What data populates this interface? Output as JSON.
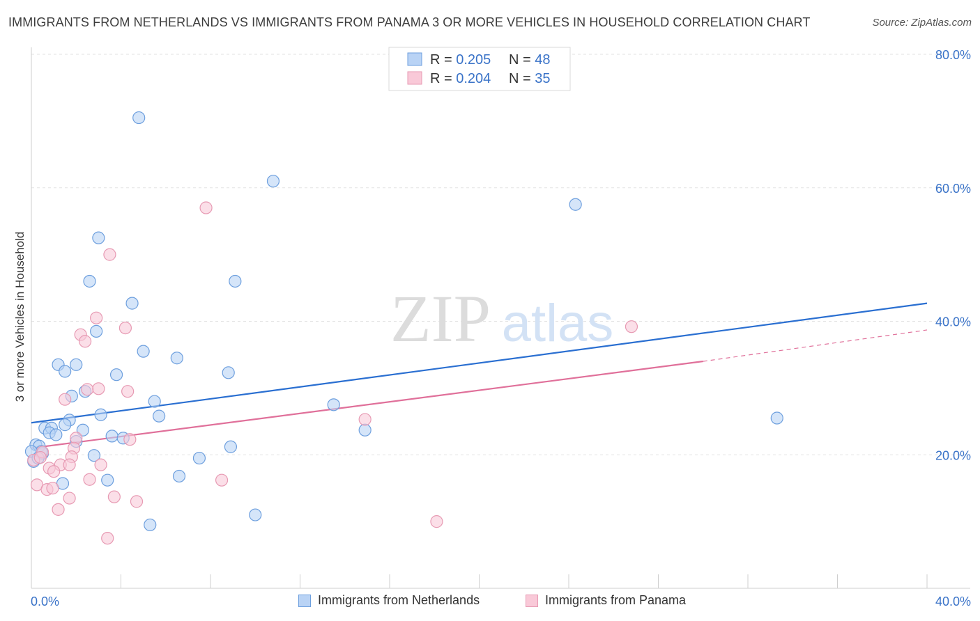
{
  "title": "IMMIGRANTS FROM NETHERLANDS VS IMMIGRANTS FROM PANAMA 3 OR MORE VEHICLES IN HOUSEHOLD CORRELATION CHART",
  "source": "Source: ZipAtlas.com",
  "watermark": {
    "zip": "ZIP",
    "atlas": "atlas"
  },
  "colors": {
    "netherlands_fill": "#b9d3f5",
    "netherlands_stroke": "#6d9fde",
    "netherlands_line": "#2a6fd1",
    "panama_fill": "#f9c9d8",
    "panama_stroke": "#e79ab3",
    "panama_line": "#e0709a",
    "value_text": "#3a73c8"
  },
  "legend": [
    {
      "r_label": "R = ",
      "r_value": "0.205",
      "n_label": "N = ",
      "n_value": "48"
    },
    {
      "r_label": "R = ",
      "r_value": "0.204",
      "n_label": "N = ",
      "n_value": "35"
    }
  ],
  "chart_data": {
    "type": "scatter",
    "title": "IMMIGRANTS FROM NETHERLANDS VS IMMIGRANTS FROM PANAMA 3 OR MORE VEHICLES IN HOUSEHOLD CORRELATION CHART",
    "xlabel": "",
    "ylabel": "3 or more Vehicles in Household",
    "xlim": [
      0,
      40
    ],
    "ylim": [
      0,
      80
    ],
    "x_tick_labels": [
      "0.0%",
      "40.0%"
    ],
    "y_ticks": [
      20,
      40,
      60,
      80
    ],
    "y_tick_labels": [
      "20.0%",
      "40.0%",
      "60.0%",
      "80.0%"
    ],
    "grid": true,
    "legend_position": "top-center",
    "series": [
      {
        "name": "Immigrants from Netherlands",
        "r": 0.205,
        "n": 48,
        "trend": {
          "x": [
            0,
            40
          ],
          "y": [
            24.8,
            42.7
          ]
        },
        "points": [
          [
            4.8,
            70.5
          ],
          [
            10.8,
            61.0
          ],
          [
            24.3,
            57.5
          ],
          [
            3.0,
            52.5
          ],
          [
            2.6,
            46.0
          ],
          [
            9.1,
            46.0
          ],
          [
            4.5,
            42.7
          ],
          [
            2.9,
            38.5
          ],
          [
            5.0,
            35.5
          ],
          [
            6.5,
            34.5
          ],
          [
            1.2,
            33.5
          ],
          [
            2.0,
            33.5
          ],
          [
            1.5,
            32.5
          ],
          [
            3.8,
            32.0
          ],
          [
            8.8,
            32.3
          ],
          [
            2.4,
            29.5
          ],
          [
            1.8,
            28.8
          ],
          [
            5.5,
            28.0
          ],
          [
            13.5,
            27.5
          ],
          [
            3.1,
            26.0
          ],
          [
            5.7,
            25.8
          ],
          [
            1.7,
            25.2
          ],
          [
            0.6,
            24.0
          ],
          [
            0.9,
            24.0
          ],
          [
            1.5,
            24.5
          ],
          [
            2.3,
            23.7
          ],
          [
            14.9,
            23.7
          ],
          [
            33.3,
            25.5
          ],
          [
            0.8,
            23.3
          ],
          [
            1.1,
            23.0
          ],
          [
            3.6,
            22.8
          ],
          [
            4.1,
            22.5
          ],
          [
            2.0,
            22.0
          ],
          [
            0.2,
            21.5
          ],
          [
            0.35,
            21.3
          ],
          [
            8.9,
            21.2
          ],
          [
            0.5,
            20.2
          ],
          [
            0.45,
            20.5
          ],
          [
            2.8,
            19.9
          ],
          [
            7.5,
            19.5
          ],
          [
            0.1,
            19.0
          ],
          [
            6.6,
            16.8
          ],
          [
            3.4,
            16.2
          ],
          [
            1.4,
            15.7
          ],
          [
            10.0,
            11.0
          ],
          [
            5.3,
            9.5
          ],
          [
            0.0,
            20.5
          ],
          [
            0.3,
            19.5
          ]
        ]
      },
      {
        "name": "Immigrants from Panama",
        "r": 0.204,
        "n": 35,
        "trend": {
          "x": [
            0,
            30
          ],
          "y": [
            21.0,
            34.0
          ]
        },
        "trend_dashed": {
          "x": [
            30,
            40
          ],
          "y": [
            34.0,
            38.7
          ]
        },
        "points": [
          [
            7.8,
            57.0
          ],
          [
            3.5,
            50.0
          ],
          [
            2.9,
            40.5
          ],
          [
            4.2,
            39.0
          ],
          [
            2.2,
            38.0
          ],
          [
            2.4,
            37.0
          ],
          [
            26.8,
            39.2
          ],
          [
            4.3,
            29.5
          ],
          [
            2.5,
            29.8
          ],
          [
            3.0,
            29.9
          ],
          [
            1.5,
            28.3
          ],
          [
            14.9,
            25.3
          ],
          [
            4.4,
            22.3
          ],
          [
            2.0,
            22.5
          ],
          [
            1.9,
            21.0
          ],
          [
            0.5,
            20.4
          ],
          [
            1.8,
            19.7
          ],
          [
            1.3,
            18.5
          ],
          [
            1.7,
            18.5
          ],
          [
            3.1,
            18.5
          ],
          [
            0.8,
            18.0
          ],
          [
            1.0,
            17.5
          ],
          [
            8.5,
            16.2
          ],
          [
            2.6,
            16.3
          ],
          [
            0.25,
            15.5
          ],
          [
            0.7,
            14.8
          ],
          [
            0.95,
            15.0
          ],
          [
            3.7,
            13.7
          ],
          [
            1.7,
            13.5
          ],
          [
            4.7,
            13.0
          ],
          [
            1.2,
            11.8
          ],
          [
            18.1,
            10.0
          ],
          [
            3.4,
            7.5
          ],
          [
            0.1,
            19.2
          ],
          [
            0.4,
            19.6
          ]
        ]
      }
    ]
  },
  "bottom_legend": [
    "Immigrants from Netherlands",
    "Immigrants from Panama"
  ]
}
